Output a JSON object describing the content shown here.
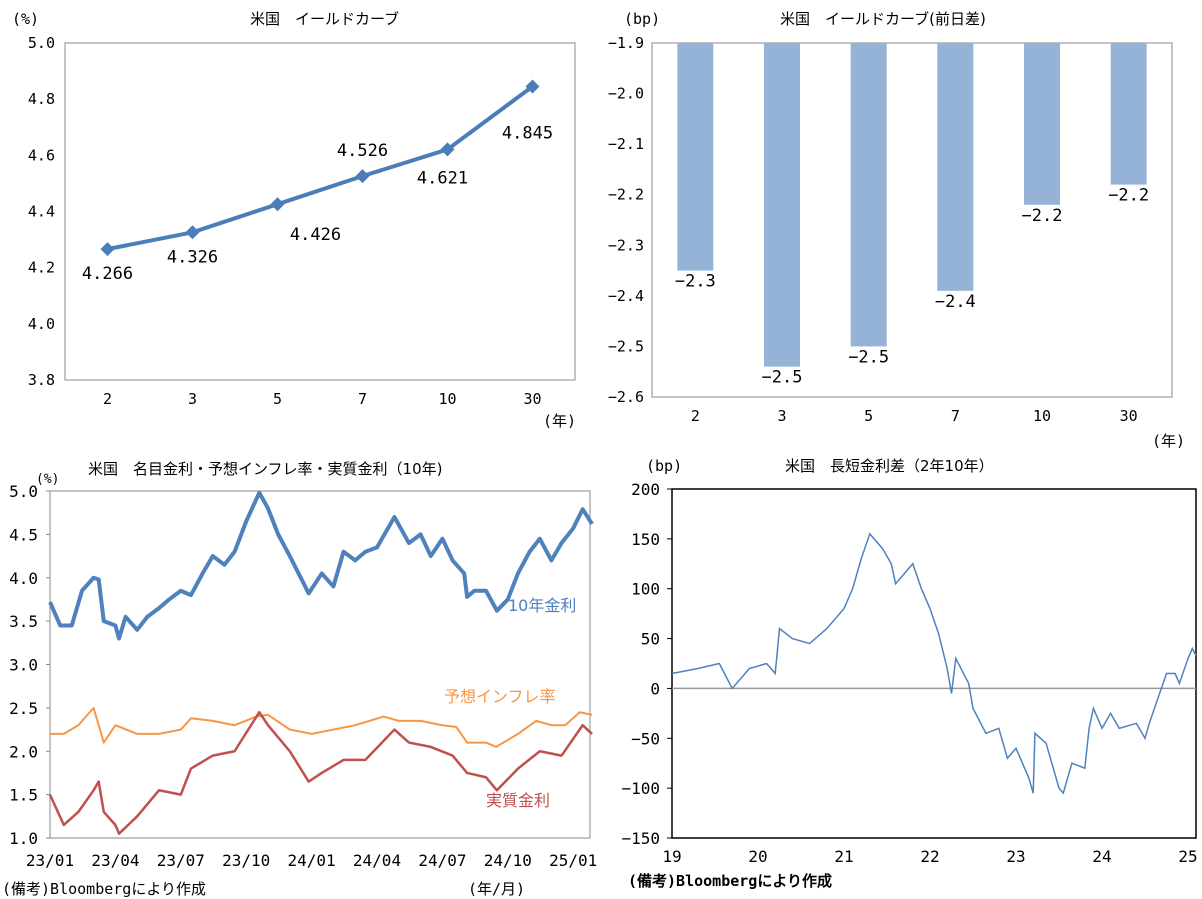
{
  "chart_data": [
    {
      "type": "line",
      "title": "米国　イールドカーブ",
      "ylabel": "(%)",
      "xlabel": "(年)",
      "categories": [
        "2",
        "3",
        "5",
        "7",
        "10",
        "30"
      ],
      "values": [
        4.266,
        4.326,
        4.426,
        4.526,
        4.621,
        4.845
      ],
      "data_labels": [
        "4.266",
        "4.326",
        "4.426",
        "4.526",
        "4.621",
        "4.845"
      ],
      "ylim": [
        3.8,
        5.0
      ],
      "yticks": [
        "3.8",
        "4.0",
        "4.2",
        "4.4",
        "4.6",
        "4.8",
        "5.0"
      ],
      "marker": "diamond",
      "color": "#4a7ebb",
      "grid": false
    },
    {
      "type": "bar",
      "title": "米国　イールドカーブ(前日差)",
      "ylabel": "(bp)",
      "xlabel": "(年)",
      "categories": [
        "2",
        "3",
        "5",
        "7",
        "10",
        "30"
      ],
      "values": [
        -2.35,
        -2.54,
        -2.5,
        -2.39,
        -2.22,
        -2.18
      ],
      "data_labels": [
        "−2.3",
        "−2.5",
        "−2.5",
        "−2.4",
        "−2.2",
        "−2.2"
      ],
      "ylim": [
        -2.6,
        -1.9
      ],
      "yticks": [
        "−2.6",
        "−2.5",
        "−2.4",
        "−2.3",
        "−2.2",
        "−2.1",
        "−2.0",
        "−1.9"
      ],
      "color": "#95b3d7",
      "grid": false
    },
    {
      "type": "line",
      "title": "米国　名目金利・予想インフレ率・実質金利（10年)",
      "ylabel": "(%)",
      "xlabel": "(年/月)",
      "ylim": [
        1.0,
        5.0
      ],
      "yticks": [
        "1.0",
        "1.5",
        "2.0",
        "2.5",
        "3.0",
        "3.5",
        "4.0",
        "4.5",
        "5.0"
      ],
      "xticks": [
        "23/01",
        "23/04",
        "23/07",
        "23/10",
        "24/01",
        "24/04",
        "24/07",
        "24/10",
        "25/01"
      ],
      "note": "(備考)Bloombergにより作成",
      "grid": false,
      "series": [
        {
          "name": "10年金利",
          "color": "#4f81bd",
          "x": [
            "2023-01-01",
            "2023-01-15",
            "2023-02-01",
            "2023-02-15",
            "2023-03-01",
            "2023-03-08",
            "2023-03-15",
            "2023-04-01",
            "2023-04-06",
            "2023-04-15",
            "2023-05-01",
            "2023-05-15",
            "2023-06-01",
            "2023-06-15",
            "2023-07-01",
            "2023-07-15",
            "2023-08-01",
            "2023-08-15",
            "2023-09-01",
            "2023-09-15",
            "2023-10-01",
            "2023-10-19",
            "2023-11-01",
            "2023-11-15",
            "2023-12-01",
            "2023-12-27",
            "2024-01-15",
            "2024-02-01",
            "2024-02-15",
            "2024-03-01",
            "2024-03-15",
            "2024-04-01",
            "2024-04-25",
            "2024-05-15",
            "2024-06-01",
            "2024-06-15",
            "2024-07-01",
            "2024-07-15",
            "2024-08-01",
            "2024-08-05",
            "2024-08-15",
            "2024-09-01",
            "2024-09-16",
            "2024-10-01",
            "2024-10-15",
            "2024-11-01",
            "2024-11-15",
            "2024-12-01",
            "2024-12-15",
            "2025-01-01",
            "2025-01-14",
            "2025-01-27"
          ],
          "y": [
            3.72,
            3.45,
            3.45,
            3.85,
            4.0,
            3.98,
            3.5,
            3.45,
            3.3,
            3.55,
            3.4,
            3.55,
            3.65,
            3.75,
            3.85,
            3.8,
            4.05,
            4.25,
            4.15,
            4.3,
            4.65,
            4.98,
            4.8,
            4.5,
            4.25,
            3.82,
            4.05,
            3.9,
            4.3,
            4.2,
            4.3,
            4.35,
            4.7,
            4.4,
            4.5,
            4.25,
            4.45,
            4.2,
            4.05,
            3.78,
            3.85,
            3.85,
            3.62,
            3.75,
            4.05,
            4.3,
            4.45,
            4.2,
            4.4,
            4.57,
            4.79,
            4.62
          ]
        },
        {
          "name": "予想インフレ率",
          "color": "#f79646",
          "x": [
            "2023-01-01",
            "2023-01-20",
            "2023-02-10",
            "2023-03-01",
            "2023-03-15",
            "2023-04-01",
            "2023-05-01",
            "2023-06-01",
            "2023-07-01",
            "2023-07-15",
            "2023-08-15",
            "2023-09-15",
            "2023-10-15",
            "2023-11-01",
            "2023-12-01",
            "2024-01-01",
            "2024-02-01",
            "2024-03-01",
            "2024-04-10",
            "2024-05-01",
            "2024-06-01",
            "2024-07-01",
            "2024-07-20",
            "2024-08-05",
            "2024-09-01",
            "2024-09-15",
            "2024-10-15",
            "2024-11-10",
            "2024-12-01",
            "2024-12-20",
            "2025-01-10",
            "2025-01-27"
          ],
          "y": [
            2.2,
            2.2,
            2.3,
            2.5,
            2.1,
            2.3,
            2.2,
            2.2,
            2.25,
            2.38,
            2.35,
            2.3,
            2.4,
            2.42,
            2.25,
            2.2,
            2.25,
            2.3,
            2.4,
            2.35,
            2.35,
            2.3,
            2.28,
            2.1,
            2.1,
            2.05,
            2.2,
            2.35,
            2.3,
            2.3,
            2.45,
            2.42
          ]
        },
        {
          "name": "実質金利",
          "color": "#c0504d",
          "x": [
            "2023-01-01",
            "2023-01-20",
            "2023-02-10",
            "2023-03-01",
            "2023-03-08",
            "2023-03-15",
            "2023-04-01",
            "2023-04-06",
            "2023-05-01",
            "2023-06-01",
            "2023-07-01",
            "2023-07-15",
            "2023-08-15",
            "2023-09-15",
            "2023-10-19",
            "2023-11-01",
            "2023-12-01",
            "2023-12-27",
            "2024-01-15",
            "2024-02-15",
            "2024-03-15",
            "2024-04-25",
            "2024-05-15",
            "2024-06-15",
            "2024-07-15",
            "2024-08-05",
            "2024-09-01",
            "2024-09-16",
            "2024-10-15",
            "2024-11-15",
            "2024-12-15",
            "2025-01-14",
            "2025-01-27"
          ],
          "y": [
            1.5,
            1.15,
            1.3,
            1.55,
            1.65,
            1.3,
            1.15,
            1.05,
            1.25,
            1.55,
            1.5,
            1.8,
            1.95,
            2.0,
            2.45,
            2.3,
            2.0,
            1.65,
            1.75,
            1.9,
            1.9,
            2.25,
            2.1,
            2.05,
            1.95,
            1.75,
            1.7,
            1.55,
            1.8,
            2.0,
            1.95,
            2.3,
            2.2
          ]
        }
      ]
    },
    {
      "type": "line",
      "title": "米国　長短金利差（2年10年）",
      "ylabel": "(bp)",
      "ylim": [
        -150,
        200
      ],
      "yticks": [
        "−150",
        "−100",
        "−50",
        "0",
        "50",
        "100",
        "150",
        "200"
      ],
      "xticks": [
        "19",
        "20",
        "21",
        "22",
        "23",
        "24",
        "25"
      ],
      "xlim": [
        2019,
        2025
      ],
      "note": "(備考)Bloombergにより作成",
      "grid": false,
      "color": "#4f81bd",
      "x": [
        2019.0,
        2019.3,
        2019.55,
        2019.7,
        2019.9,
        2020.1,
        2020.2,
        2020.25,
        2020.4,
        2020.6,
        2020.8,
        2021.0,
        2021.1,
        2021.2,
        2021.3,
        2021.45,
        2021.55,
        2021.6,
        2021.8,
        2021.9,
        2022.0,
        2022.1,
        2022.2,
        2022.25,
        2022.3,
        2022.45,
        2022.5,
        2022.65,
        2022.8,
        2022.9,
        2023.0,
        2023.15,
        2023.2,
        2023.22,
        2023.35,
        2023.5,
        2023.55,
        2023.65,
        2023.8,
        2023.85,
        2023.9,
        2024.0,
        2024.1,
        2024.2,
        2024.4,
        2024.5,
        2024.55,
        2024.65,
        2024.75,
        2024.85,
        2024.9,
        2025.0,
        2025.05,
        2025.1
      ],
      "y": [
        15,
        20,
        25,
        0,
        20,
        25,
        15,
        60,
        50,
        45,
        60,
        80,
        100,
        130,
        155,
        140,
        125,
        105,
        125,
        100,
        80,
        55,
        20,
        -5,
        30,
        5,
        -20,
        -45,
        -40,
        -70,
        -60,
        -90,
        -105,
        -45,
        -55,
        -100,
        -105,
        -75,
        -80,
        -40,
        -20,
        -40,
        -25,
        -40,
        -35,
        -50,
        -35,
        -10,
        15,
        15,
        5,
        30,
        40,
        33
      ]
    }
  ]
}
